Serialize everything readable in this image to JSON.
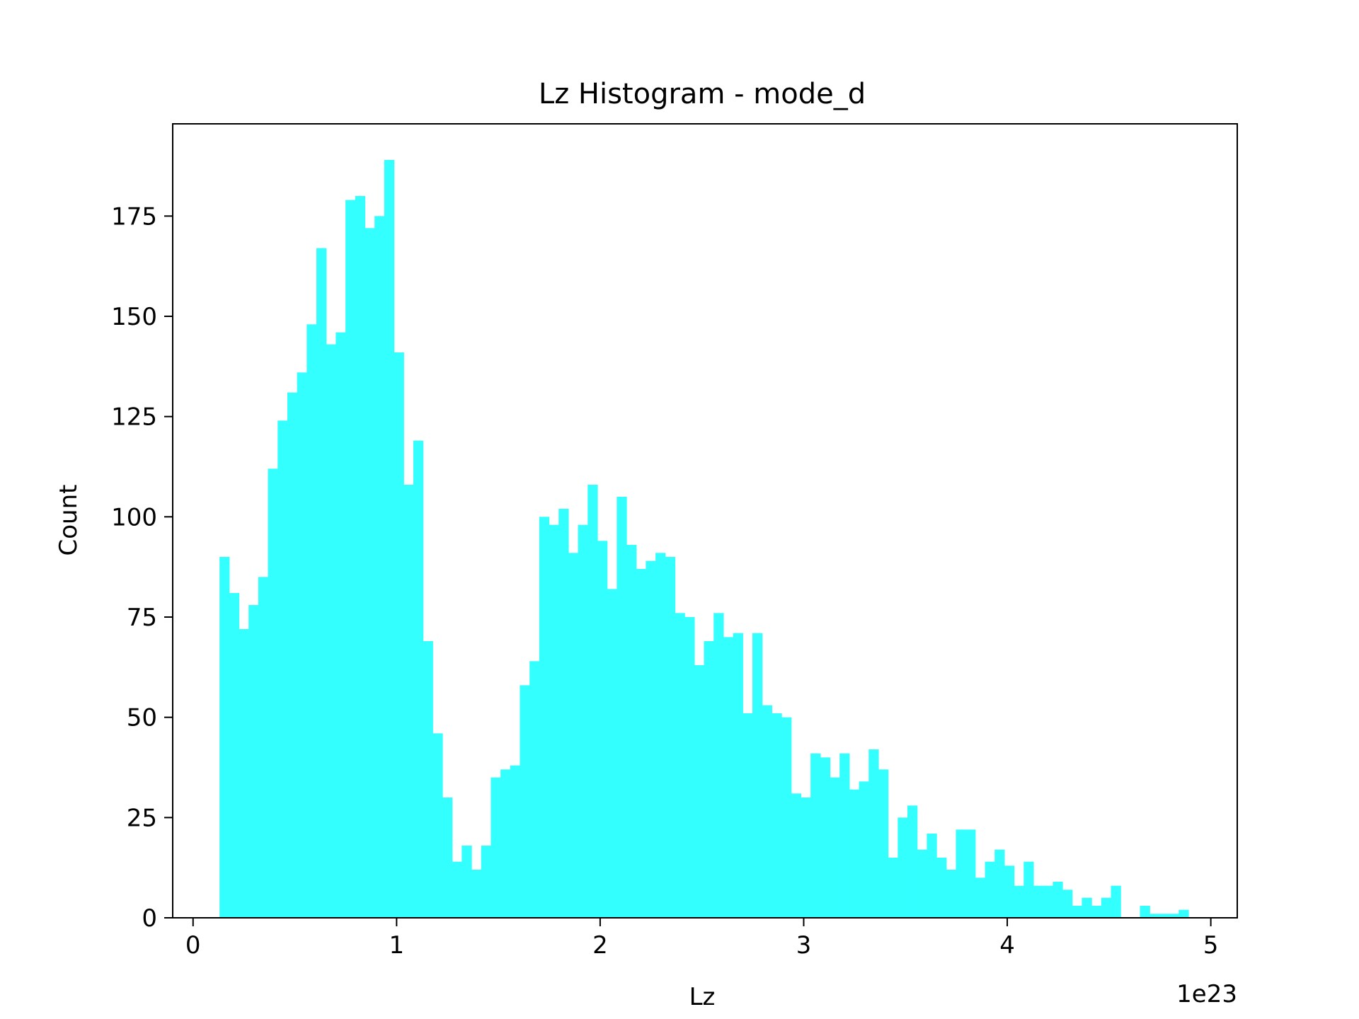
{
  "chart_data": {
    "type": "bar",
    "title": "Lz Histogram - mode_d",
    "xlabel": "Lz",
    "ylabel": "Count",
    "x_offset_label": "1e23",
    "xlim": [
      -0.1,
      5.13
    ],
    "ylim": [
      0,
      198
    ],
    "xticks": [
      0,
      1,
      2,
      3,
      4,
      5
    ],
    "yticks": [
      0,
      25,
      50,
      75,
      100,
      125,
      150,
      175
    ],
    "grid": false,
    "legend": "none",
    "bar_color": "#33ffff",
    "bin_start": 0.13,
    "bin_width": 0.0476,
    "counts": [
      90,
      81,
      72,
      78,
      85,
      112,
      124,
      131,
      136,
      148,
      167,
      143,
      146,
      179,
      180,
      172,
      175,
      189,
      141,
      108,
      119,
      69,
      46,
      30,
      14,
      18,
      12,
      18,
      35,
      37,
      38,
      58,
      64,
      100,
      98,
      102,
      91,
      98,
      108,
      94,
      82,
      105,
      93,
      87,
      89,
      91,
      90,
      76,
      75,
      63,
      69,
      76,
      70,
      71,
      51,
      71,
      53,
      51,
      50,
      31,
      30,
      41,
      40,
      35,
      41,
      32,
      34,
      42,
      37,
      15,
      25,
      28,
      17,
      21,
      15,
      12,
      22,
      22,
      10,
      14,
      17,
      13,
      8,
      14,
      8,
      8,
      9,
      7,
      3,
      5,
      3,
      5,
      8,
      0,
      0,
      3,
      1,
      1,
      1,
      2
    ]
  }
}
